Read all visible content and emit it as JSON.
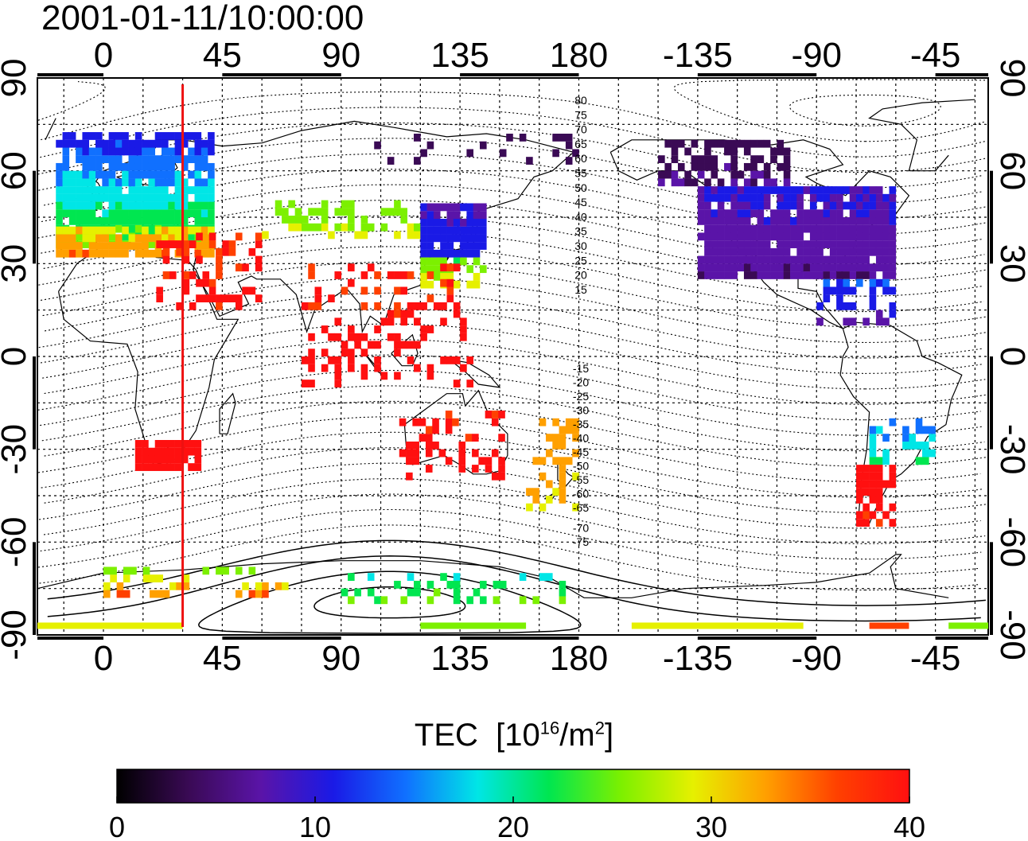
{
  "title": "2001-01-11/10:00:00",
  "map": {
    "top_lon_labels": [
      "0",
      "45",
      "90",
      "135",
      "180",
      "-135",
      "-90",
      "-45"
    ],
    "bottom_lon_labels": [
      "0",
      "45",
      "90",
      "135",
      "180",
      "-135",
      "-90",
      "-45"
    ],
    "lat_labels": [
      "90",
      "60",
      "30",
      "0",
      "-30",
      "-60",
      "-90"
    ],
    "contour_labels_north": [
      "80",
      "75",
      "70",
      "65",
      "60",
      "55",
      "50",
      "45",
      "40",
      "35",
      "30",
      "25",
      "20",
      "15"
    ],
    "contour_labels_south": [
      "-15",
      "-20",
      "-25",
      "-30",
      "-35",
      "-40",
      "-45",
      "-50",
      "-55",
      "-60",
      "-65",
      "-70",
      "-75"
    ],
    "marker_line_color": "#ee1111",
    "grid": "dotted, every 15 degrees"
  },
  "colorbar": {
    "title": "TEC",
    "unit_prefix": "[10",
    "unit_exp1": "16",
    "unit_mid": "/m",
    "unit_exp2": "2",
    "unit_suffix": "]",
    "ticks": [
      "0",
      "10",
      "20",
      "30",
      "40"
    ],
    "min": 0,
    "max": 40,
    "colors": [
      "#000000",
      "#3a0a55",
      "#5a14a8",
      "#1a1ae6",
      "#1070ff",
      "#00e6e6",
      "#00e650",
      "#7cf000",
      "#e6f000",
      "#ffa000",
      "#ff4000",
      "#ff1010"
    ]
  }
}
